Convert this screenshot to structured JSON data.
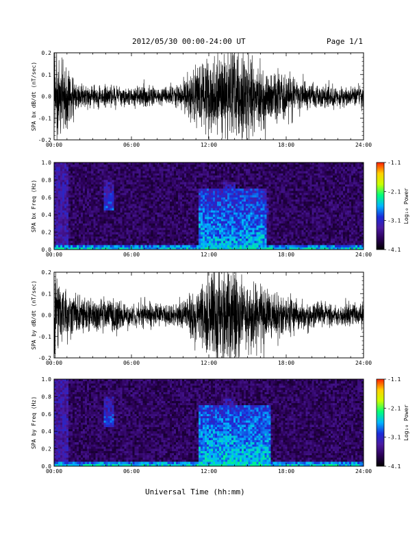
{
  "header": {
    "title": "2012/05/30  00:00-24:00 UT",
    "page": "Page 1/1"
  },
  "xlabel": "Universal Time (hh:mm)",
  "colors": {
    "trace": "#000000",
    "background": "#ffffff"
  },
  "colorbar": {
    "label": "Log₁₀ Power",
    "ticks": [
      "-1.1",
      "-2.1",
      "-3.1",
      "-4.1"
    ],
    "range": [
      -4.1,
      -1.1
    ],
    "colormap": [
      "#000000",
      "#2a0055",
      "#4b1aa0",
      "#1a2ad8",
      "#00b4ff",
      "#00ff7a",
      "#c8ff00",
      "#ffd000",
      "#ff2000"
    ]
  },
  "chart_data": [
    {
      "type": "line",
      "ylabel": "SPA bx dB/dt (nT/sec)",
      "xlim": [
        0,
        24
      ],
      "ylim": [
        -0.2,
        0.2
      ],
      "xticks": [
        "00:00",
        "06:00",
        "12:00",
        "18:00",
        "24:00"
      ],
      "yticks": [
        "0.2",
        "0.1",
        "0.0",
        "-0.1",
        "-0.2"
      ],
      "envelope": {
        "hours": [
          0,
          0.5,
          1,
          1.5,
          2,
          3,
          4,
          5,
          6,
          7,
          8,
          9,
          10,
          10.5,
          11,
          11.5,
          12,
          12.5,
          13,
          13.5,
          14,
          14.5,
          15,
          15.5,
          16,
          16.5,
          17,
          18,
          19,
          20,
          21,
          22,
          23,
          24
        ],
        "amplitude": [
          0.2,
          0.19,
          0.15,
          0.08,
          0.06,
          0.05,
          0.05,
          0.04,
          0.04,
          0.05,
          0.04,
          0.04,
          0.06,
          0.12,
          0.15,
          0.14,
          0.2,
          0.2,
          0.2,
          0.2,
          0.2,
          0.2,
          0.18,
          0.17,
          0.15,
          0.12,
          0.12,
          0.09,
          0.07,
          0.06,
          0.05,
          0.04,
          0.04,
          0.05
        ]
      }
    },
    {
      "type": "heatmap",
      "ylabel": "SPA bx Freq (Hz)",
      "xlim": [
        0,
        24
      ],
      "ylim": [
        0,
        1.0
      ],
      "xticks": [
        "00:00",
        "06:00",
        "12:00",
        "18:00",
        "24:00"
      ],
      "yticks": [
        "1.0",
        "0.8",
        "0.6",
        "0.4",
        "0.2",
        "0.0"
      ],
      "zrange": [
        -4.1,
        -1.1
      ],
      "features": [
        {
          "name": "low-frequency band",
          "hours": [
            0,
            24
          ],
          "freq": [
            0.0,
            0.05
          ],
          "level": -2.4
        },
        {
          "name": "pc1 emission",
          "hours": [
            3.8,
            4.6
          ],
          "freq": [
            0.45,
            0.8
          ],
          "level": -2.9
        },
        {
          "name": "broadband activity",
          "hours": [
            11.2,
            16.5
          ],
          "freq": [
            0.0,
            0.7
          ],
          "level": -2.6
        },
        {
          "name": "pc1 emission",
          "hours": [
            13.2,
            14.0
          ],
          "freq": [
            0.55,
            0.78
          ],
          "level": -2.9
        },
        {
          "name": "pc1 emission",
          "hours": [
            15.8,
            16.6
          ],
          "freq": [
            0.4,
            0.6
          ],
          "level": -3.1
        }
      ]
    },
    {
      "type": "line",
      "ylabel": "SPA by dB/dt (nT/sec)",
      "xlim": [
        0,
        24
      ],
      "ylim": [
        -0.2,
        0.2
      ],
      "xticks": [
        "00:00",
        "06:00",
        "12:00",
        "18:00",
        "24:00"
      ],
      "yticks": [
        "0.2",
        "0.1",
        "0.0",
        "-0.1",
        "-0.2"
      ],
      "envelope": {
        "hours": [
          0,
          0.5,
          1,
          1.5,
          2,
          3,
          4,
          5,
          6,
          7,
          8,
          9,
          10,
          10.5,
          11,
          11.5,
          12,
          12.5,
          13,
          13.5,
          14,
          14.5,
          15,
          15.5,
          16,
          16.5,
          17,
          18,
          19,
          20,
          21,
          22,
          23,
          24
        ],
        "amplitude": [
          0.2,
          0.15,
          0.12,
          0.1,
          0.08,
          0.07,
          0.09,
          0.06,
          0.05,
          0.06,
          0.05,
          0.05,
          0.07,
          0.1,
          0.12,
          0.14,
          0.2,
          0.2,
          0.2,
          0.2,
          0.2,
          0.2,
          0.16,
          0.15,
          0.14,
          0.12,
          0.1,
          0.08,
          0.07,
          0.06,
          0.05,
          0.05,
          0.05,
          0.05
        ]
      }
    },
    {
      "type": "heatmap",
      "ylabel": "SPA by Freq (Hz)",
      "xlim": [
        0,
        24
      ],
      "ylim": [
        0,
        1.0
      ],
      "xticks": [
        "00:00",
        "06:00",
        "12:00",
        "18:00",
        "24:00"
      ],
      "yticks": [
        "1.0",
        "0.8",
        "0.6",
        "0.4",
        "0.2",
        "0.0"
      ],
      "zrange": [
        -4.1,
        -1.1
      ],
      "features": [
        {
          "name": "low-frequency band",
          "hours": [
            0,
            24
          ],
          "freq": [
            0.0,
            0.05
          ],
          "level": -2.4
        },
        {
          "name": "pc1 emission",
          "hours": [
            3.8,
            4.6
          ],
          "freq": [
            0.45,
            0.8
          ],
          "level": -2.9
        },
        {
          "name": "broadband activity",
          "hours": [
            11.2,
            16.8
          ],
          "freq": [
            0.0,
            0.7
          ],
          "level": -2.5
        },
        {
          "name": "pc1 emission",
          "hours": [
            13.2,
            14.0
          ],
          "freq": [
            0.55,
            0.78
          ],
          "level": -2.9
        }
      ]
    }
  ]
}
